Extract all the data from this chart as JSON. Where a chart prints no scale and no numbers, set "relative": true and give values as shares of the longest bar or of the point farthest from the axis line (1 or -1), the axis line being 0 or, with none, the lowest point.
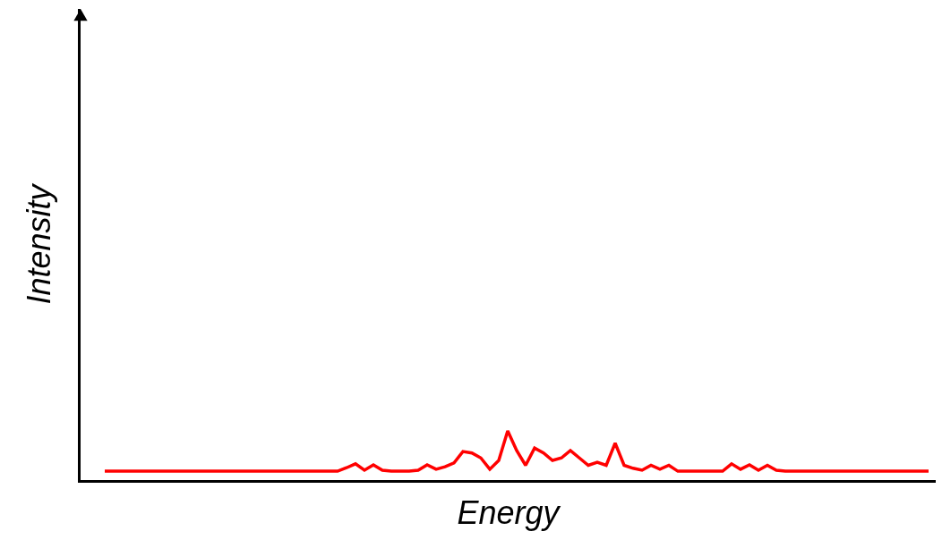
{
  "chart_data": {
    "type": "line",
    "xlabel": "Energy",
    "ylabel": "Intensity",
    "relative": true,
    "categories": [
      null,
      null,
      null,
      null,
      null,
      null,
      null,
      null,
      null,
      null,
      null,
      null,
      null,
      null,
      null,
      null,
      null,
      null,
      null,
      null,
      null,
      null,
      null,
      null,
      null,
      null,
      null,
      null,
      null,
      null,
      null,
      null,
      null,
      null,
      null,
      null,
      null,
      null,
      null,
      null,
      null,
      null,
      null,
      null,
      null,
      null,
      null,
      null,
      null,
      null,
      null,
      null,
      null,
      null,
      null,
      null,
      null,
      null,
      null,
      null,
      null,
      null,
      null,
      null,
      null,
      null,
      null,
      null,
      null,
      null,
      null,
      null,
      null,
      null,
      null,
      null,
      null,
      null,
      null,
      null,
      null,
      null,
      null,
      null,
      null,
      null,
      null,
      null,
      null,
      null,
      null,
      null,
      null
    ],
    "series": [
      {
        "color": "#ff0000",
        "values": [
          0.18,
          0.18,
          0.18,
          0.18,
          0.18,
          0.18,
          0.18,
          0.18,
          0.18,
          0.18,
          0.18,
          0.18,
          0.18,
          0.18,
          0.18,
          0.18,
          0.18,
          0.18,
          0.18,
          0.18,
          0.18,
          0.18,
          0.18,
          0.18,
          0.18,
          0.18,
          0.18,
          0.25,
          0.33,
          0.2,
          0.31,
          0.2,
          0.18,
          0.18,
          0.18,
          0.2,
          0.31,
          0.22,
          0.27,
          0.35,
          0.58,
          0.55,
          0.45,
          0.22,
          0.4,
          1.0,
          0.6,
          0.3,
          0.65,
          0.55,
          0.4,
          0.45,
          0.6,
          0.45,
          0.3,
          0.36,
          0.3,
          0.75,
          0.3,
          0.24,
          0.2,
          0.3,
          0.22,
          0.3,
          0.18,
          0.18,
          0.18,
          0.18,
          0.18,
          0.18,
          0.33,
          0.22,
          0.31,
          0.2,
          0.3,
          0.2,
          0.18,
          0.18,
          0.18,
          0.18,
          0.18,
          0.18,
          0.18,
          0.18,
          0.18,
          0.18,
          0.18,
          0.18,
          0.18,
          0.18,
          0.18,
          0.18,
          0.18
        ]
      }
    ]
  }
}
